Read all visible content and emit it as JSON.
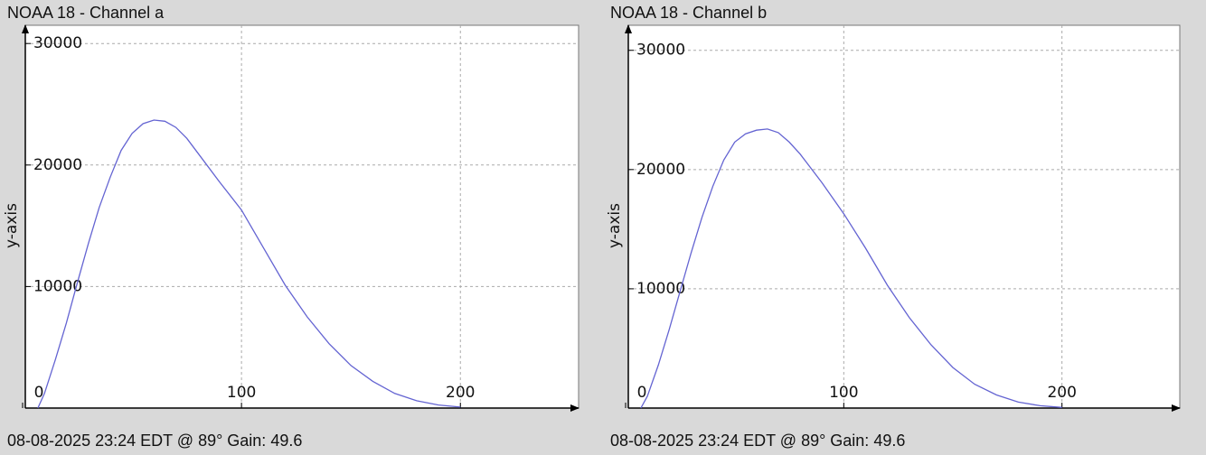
{
  "chart_data": [
    {
      "type": "line",
      "title": "NOAA 18 - Channel a",
      "footer": "08-08-2025 23:24 EDT @ 89° Gain: 49.6",
      "y_label": "y-axis",
      "xlim": [
        0,
        254
      ],
      "ylim": [
        0,
        31500
      ],
      "xticks": [
        0,
        100,
        200
      ],
      "yticks": [
        10000,
        20000,
        30000
      ],
      "grid": true,
      "series": [
        {
          "color": "#6464d2",
          "x": [
            7,
            10,
            15,
            20,
            25,
            30,
            35,
            40,
            45,
            50,
            55,
            60,
            65,
            70,
            75,
            80,
            90,
            100,
            110,
            120,
            130,
            140,
            150,
            160,
            170,
            180,
            190,
            200
          ],
          "values": [
            0,
            1200,
            4000,
            7000,
            10300,
            13500,
            16500,
            19000,
            21200,
            22600,
            23400,
            23700,
            23600,
            23100,
            22200,
            21000,
            18600,
            16300,
            13200,
            10100,
            7500,
            5300,
            3500,
            2200,
            1200,
            600,
            250,
            80
          ]
        }
      ]
    },
    {
      "type": "line",
      "title": "NOAA 18 - Channel b",
      "footer": "08-08-2025 23:24 EDT @ 89° Gain: 49.6",
      "y_label": "y-axis",
      "xlim": [
        0,
        254
      ],
      "ylim": [
        0,
        32100
      ],
      "xticks": [
        0,
        100,
        200
      ],
      "yticks": [
        10000,
        20000,
        30000
      ],
      "grid": true,
      "series": [
        {
          "color": "#6464d2",
          "x": [
            7,
            10,
            15,
            20,
            25,
            30,
            35,
            40,
            45,
            50,
            55,
            60,
            65,
            70,
            75,
            80,
            90,
            100,
            110,
            120,
            130,
            140,
            150,
            160,
            170,
            180,
            190,
            200
          ],
          "values": [
            0,
            1000,
            3600,
            6600,
            9800,
            13000,
            16000,
            18600,
            20800,
            22300,
            23000,
            23300,
            23400,
            23100,
            22300,
            21300,
            18900,
            16300,
            13400,
            10300,
            7600,
            5300,
            3400,
            2000,
            1100,
            500,
            200,
            50
          ]
        }
      ]
    }
  ]
}
